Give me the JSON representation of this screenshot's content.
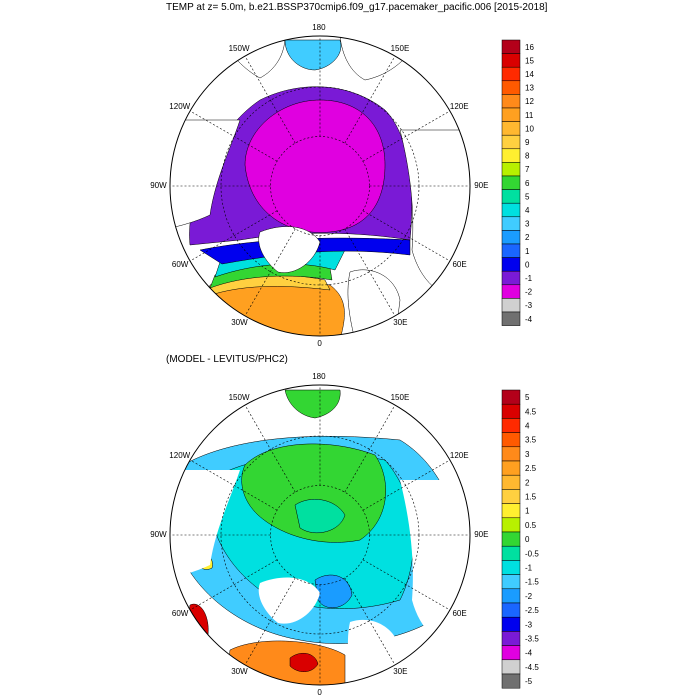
{
  "titles": {
    "top": "TEMP at z=   5.0m, b.e21.BSSP370cmip6.f09_g17.pacemaker_pacific.006 [2015-2018]",
    "bottom": "(MODEL - LEVITUS/PHC2)"
  },
  "longitude_labels": [
    "180",
    "150E",
    "120E",
    "90E",
    "60E",
    "30E",
    "0",
    "30W",
    "60W",
    "90W",
    "120W",
    "150W"
  ],
  "colorbar_top": {
    "labels": [
      "16",
      "15",
      "14",
      "13",
      "12",
      "11",
      "10",
      "9",
      "8",
      "7",
      "6",
      "5",
      "4",
      "3",
      "2",
      "1",
      "0",
      "-1",
      "-2",
      "-3",
      "-4"
    ],
    "colors": [
      "#b3001a",
      "#d90000",
      "#ff2a00",
      "#ff5a00",
      "#ff8a1a",
      "#ffa020",
      "#ffb830",
      "#ffd040",
      "#ffef30",
      "#b8f000",
      "#33d633",
      "#00e0a0",
      "#00e0e0",
      "#40ccff",
      "#1a9cff",
      "#1a66ff",
      "#0000ee",
      "#7a1ad6",
      "#e000e0",
      "#d0d0d0",
      "#707070"
    ]
  },
  "colorbar_bottom": {
    "labels": [
      "5",
      "4.5",
      "4",
      "3.5",
      "3",
      "2.5",
      "2",
      "1.5",
      "1",
      "0.5",
      "0",
      "-0.5",
      "-1",
      "-1.5",
      "-2",
      "-2.5",
      "-3",
      "-3.5",
      "-4",
      "-4.5",
      "-5"
    ],
    "colors": [
      "#b3001a",
      "#d90000",
      "#ff2a00",
      "#ff5a00",
      "#ff8a1a",
      "#ffa020",
      "#ffb830",
      "#ffd040",
      "#ffef30",
      "#b8f000",
      "#33d633",
      "#00e0a0",
      "#00e0e0",
      "#40ccff",
      "#1a9cff",
      "#1a66ff",
      "#0000ee",
      "#7a1ad6",
      "#e000e0",
      "#d0d0d0",
      "#707070"
    ]
  },
  "map_colors": {
    "land": "#ffffff",
    "top_purple": "#e000e0",
    "top_violet": "#7a1ad6",
    "top_blue": "#0000ee",
    "top_cyan": "#00e0e0",
    "top_green": "#33d633",
    "top_orange": "#ffa020",
    "top_lightblue": "#40ccff",
    "bot_green": "#33d633",
    "bot_teal": "#00e0a0",
    "bot_cyan": "#00e0e0",
    "bot_lightblue": "#40ccff",
    "bot_blue": "#1a9cff",
    "bot_red": "#d90000",
    "bot_orange": "#ff8a1a",
    "bot_yellow": "#ffef30"
  }
}
